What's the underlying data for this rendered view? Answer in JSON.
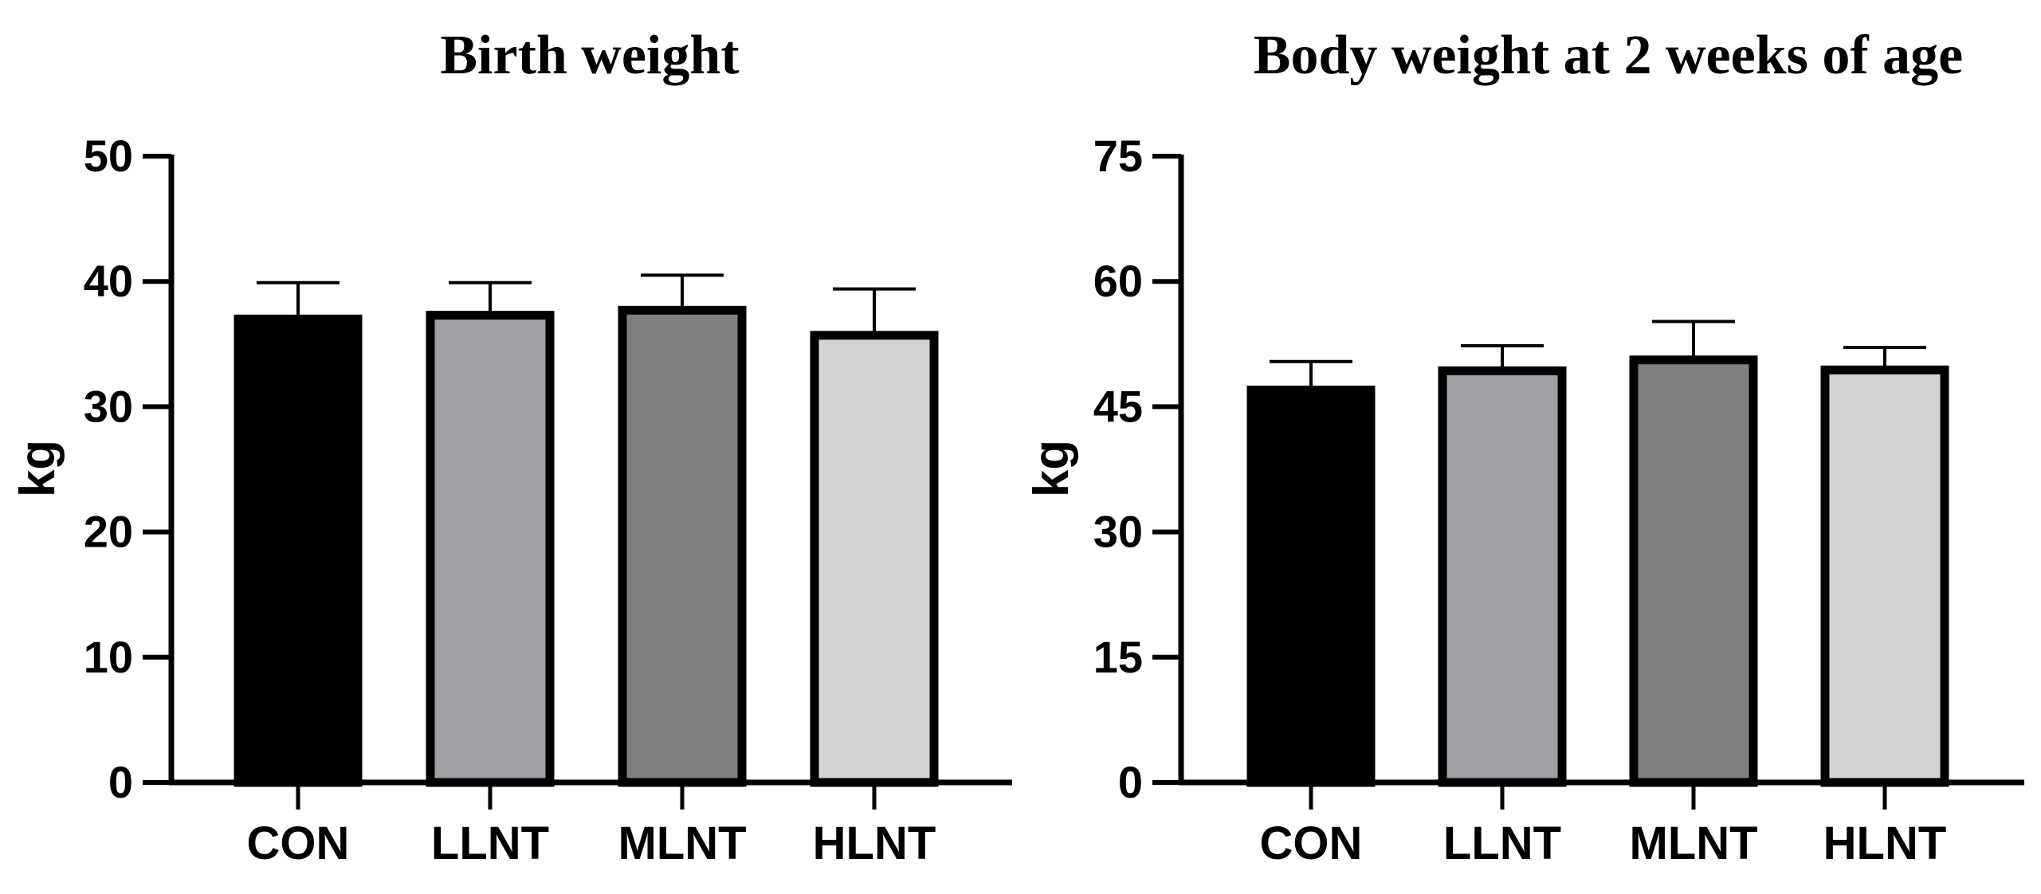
{
  "chart_data": [
    {
      "type": "bar",
      "title": "Birth weight",
      "xlabel": "",
      "ylabel": "kg",
      "ylim": [
        0,
        50
      ],
      "yticks": [
        0,
        10,
        20,
        30,
        40,
        50
      ],
      "categories": [
        "CON",
        "LLNT",
        "MLNT",
        "HLNT"
      ],
      "values": [
        37.0,
        37.3,
        37.7,
        35.7
      ],
      "errors": [
        2.9,
        2.6,
        2.8,
        3.7
      ],
      "colors": [
        "#000000",
        "#a0a0a4",
        "#808080",
        "#d3d3d3"
      ]
    },
    {
      "type": "bar",
      "title": "Body weight at 2 weeks of age",
      "xlabel": "",
      "ylabel": "kg",
      "ylim": [
        0,
        75
      ],
      "yticks": [
        0,
        15,
        30,
        45,
        60,
        75
      ],
      "categories": [
        "CON",
        "LLNT",
        "MLNT",
        "HLNT"
      ],
      "values": [
        47.0,
        49.3,
        50.6,
        49.4
      ],
      "errors": [
        3.4,
        3.0,
        4.6,
        2.7
      ],
      "colors": [
        "#000000",
        "#a0a0a4",
        "#808080",
        "#d3d3d3"
      ]
    }
  ]
}
